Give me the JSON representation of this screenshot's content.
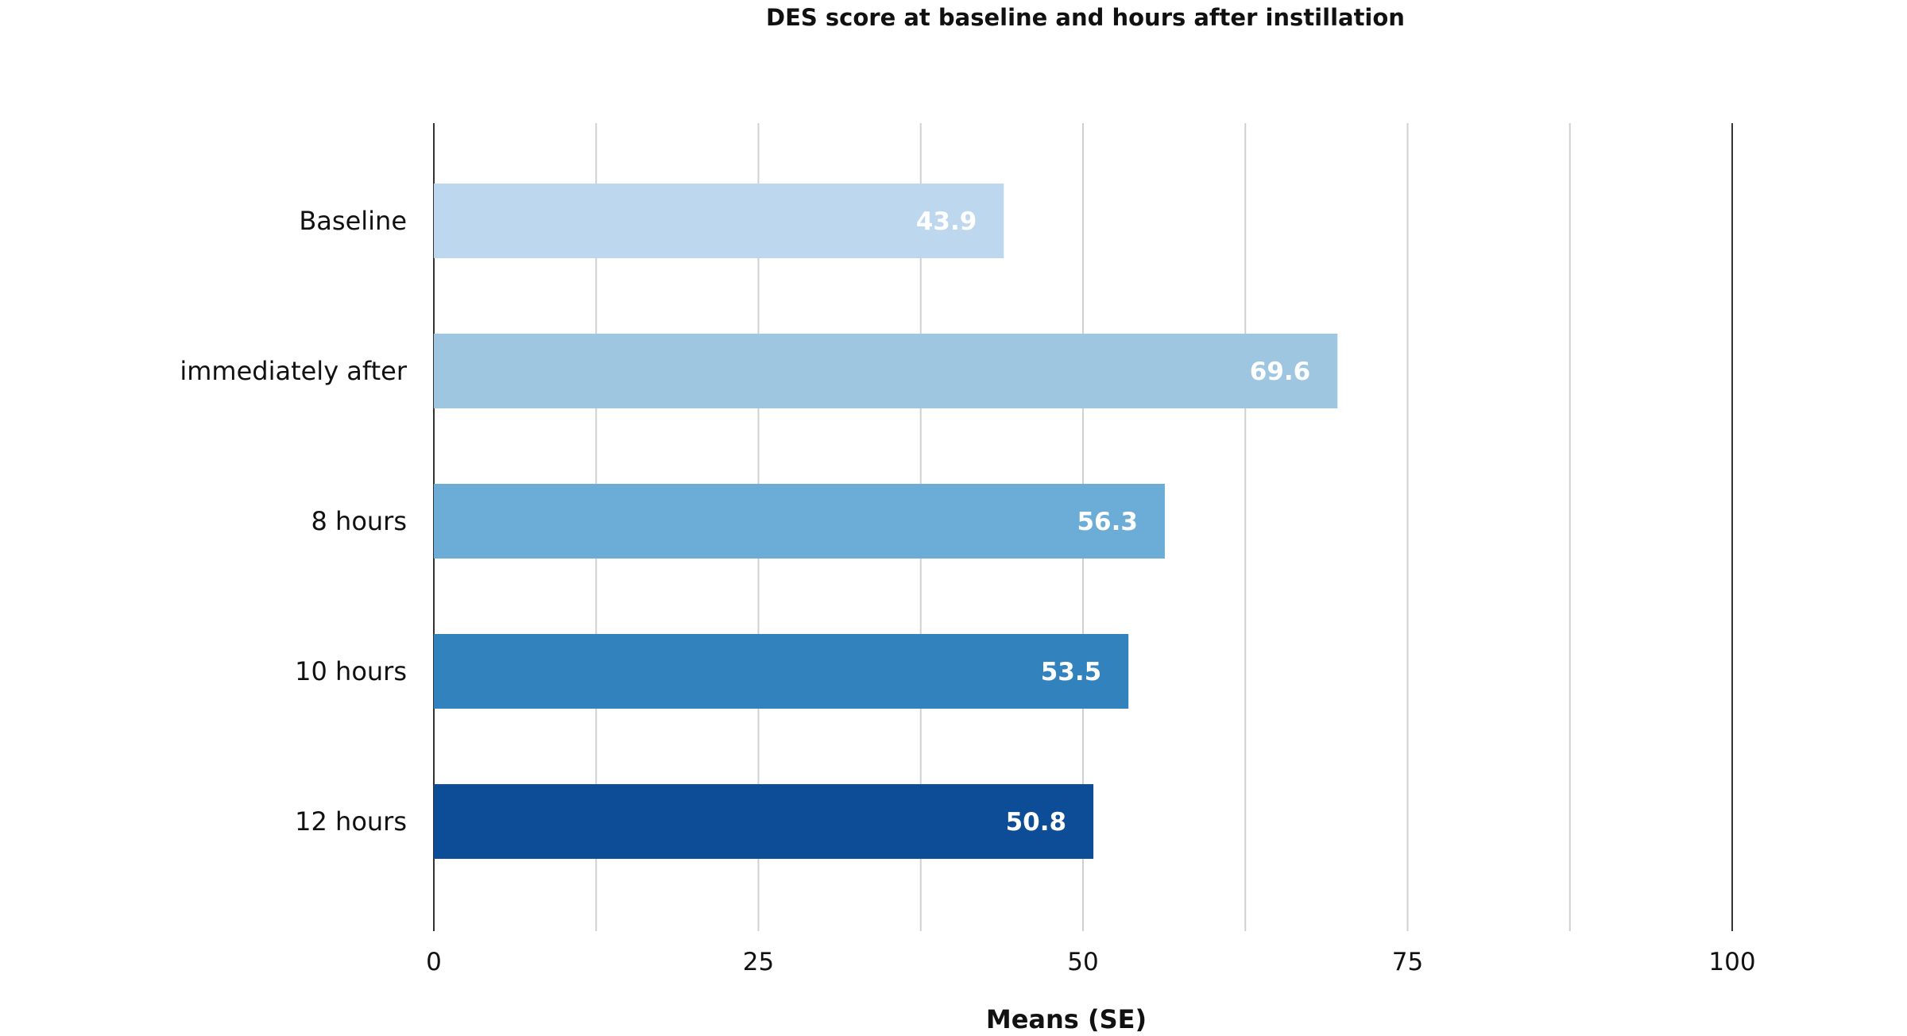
{
  "chart_data": {
    "type": "bar",
    "orientation": "horizontal",
    "title": "DES score at baseline and hours after instillation",
    "xlabel": "Means (SE)",
    "ylabel": "",
    "categories": [
      "Baseline",
      "immediately after",
      "8 hours",
      "10 hours",
      "12 hours"
    ],
    "values": [
      43.9,
      69.6,
      56.3,
      53.5,
      50.8
    ],
    "data_labels": [
      "43.9",
      "69.6",
      "56.3",
      "53.5",
      "50.8"
    ],
    "bar_colors": [
      "#bdd7ee",
      "#9ec6e1",
      "#6badd6",
      "#3182bd",
      "#0d4c97"
    ],
    "xlim": [
      0,
      100
    ],
    "xticks": [
      0,
      25,
      50,
      75,
      100
    ],
    "xtick_labels": [
      "0",
      "25",
      "50",
      "75",
      "100"
    ],
    "minor_gridlines": [
      12.5,
      37.5,
      62.5,
      87.5
    ],
    "grid": true,
    "gridline_color": "#d0d0d0",
    "axis_line_color": "#333333",
    "legend": "none"
  }
}
